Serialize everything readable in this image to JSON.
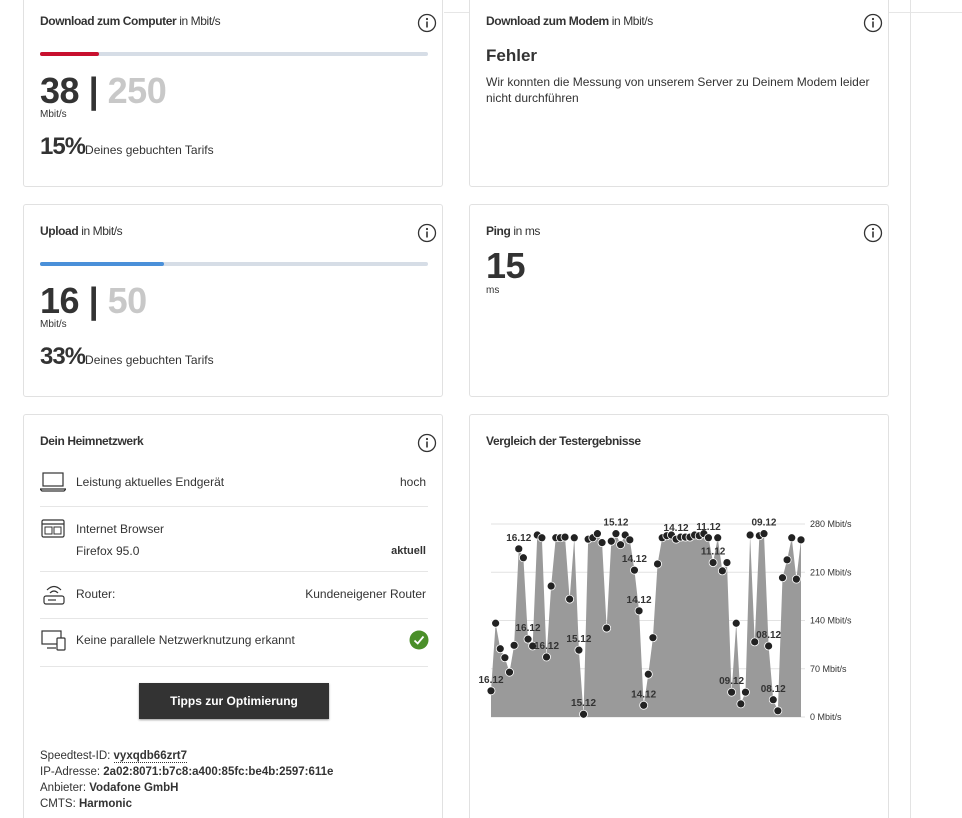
{
  "download_computer": {
    "title": "Download zum Computer",
    "unit_note": "in Mbit/s",
    "measured": 38,
    "separator": "|",
    "tariff": 250,
    "unit": "Mbit/s",
    "percent": {
      "value": 15,
      "label": "15%"
    },
    "percent_text": "Deines gebuchten Tarifs"
  },
  "download_modem": {
    "title": "Download zum Modem",
    "unit_note": "in Mbit/s",
    "error": "Fehler",
    "message": "Wir konnten die Messung von unserem Server zu Deinem Modem leider nicht durchführen"
  },
  "upload": {
    "title": "Upload",
    "unit_note": "in Mbit/s",
    "measured": 16,
    "separator": "|",
    "tariff": 50,
    "unit": "Mbit/s",
    "percent": {
      "value": 33,
      "label": "33%"
    },
    "percent_text": "Deines gebuchten Tarifs"
  },
  "ping": {
    "title": "Ping",
    "unit_note": "in ms",
    "value": 15,
    "unit": "ms"
  },
  "home_network": {
    "title": "Dein Heimnetzwerk",
    "rows": [
      {
        "label": "Leistung aktuelles Endgerät",
        "value": "hoch"
      },
      {
        "label": "Internet Browser",
        "sub": "Firefox 95.0",
        "value": "aktuell"
      },
      {
        "label": "Router:",
        "value": "Kundeneigener Router"
      },
      {
        "label": "Keine parallele Netzwerknutzung erkannt"
      }
    ],
    "button": "Tipps zur Optimierung",
    "info": [
      {
        "label": "Speedtest-ID:",
        "value": "vyxqdb66zrt7"
      },
      {
        "label": "IP-Adresse:",
        "value": "2a02:8071:b7c8:a400:85fc:be4b:2597:611e"
      },
      {
        "label": "Anbieter:",
        "value": "Vodafone GmbH"
      },
      {
        "label": "CMTS:",
        "value": "Harmonic"
      }
    ]
  },
  "chart_data": {
    "type": "area",
    "title": "Vergleich der Testergebnisse",
    "color": "#9a9a9a",
    "marker_color": "#222222",
    "categories": [
      "16.12",
      null,
      null,
      null,
      null,
      null,
      "16.12",
      null,
      "16.12",
      null,
      null,
      null,
      "16.12",
      null,
      null,
      null,
      null,
      null,
      null,
      "15.12",
      "15.12",
      null,
      null,
      null,
      null,
      null,
      null,
      "15.12",
      null,
      null,
      null,
      "14.12",
      "14.12",
      "14.12",
      null,
      null,
      null,
      null,
      null,
      null,
      "14.12",
      null,
      null,
      null,
      null,
      null,
      null,
      "11.12",
      "11.12",
      null,
      null,
      null,
      "09.12",
      null,
      null,
      null,
      null,
      null,
      null,
      "09.12",
      "08.12",
      "08.12",
      null,
      null,
      null,
      null,
      null,
      null
    ],
    "values": [
      38,
      136,
      99,
      86,
      65,
      104,
      244,
      231,
      113,
      103,
      264,
      260,
      87,
      190,
      260,
      260,
      261,
      171,
      260,
      97,
      4,
      258,
      260,
      266,
      253,
      129,
      255,
      266,
      250,
      264,
      257,
      213,
      154,
      17,
      62,
      115,
      222,
      260,
      263,
      264,
      258,
      261,
      261,
      261,
      264,
      263,
      266,
      260,
      224,
      260,
      212,
      224,
      36,
      136,
      19,
      36,
      264,
      109,
      263,
      266,
      103,
      25,
      9,
      202,
      228,
      260,
      200,
      257
    ],
    "ylim": [
      0,
      280
    ],
    "yticks": [
      {
        "value": 0,
        "label": "0 Mbit/s"
      },
      {
        "value": 70,
        "label": "70 Mbit/s"
      },
      {
        "value": 140,
        "label": "140 Mbit/s"
      },
      {
        "value": 210,
        "label": "210 Mbit/s"
      },
      {
        "value": 280,
        "label": "280 Mbit/s"
      }
    ],
    "grid": true
  }
}
